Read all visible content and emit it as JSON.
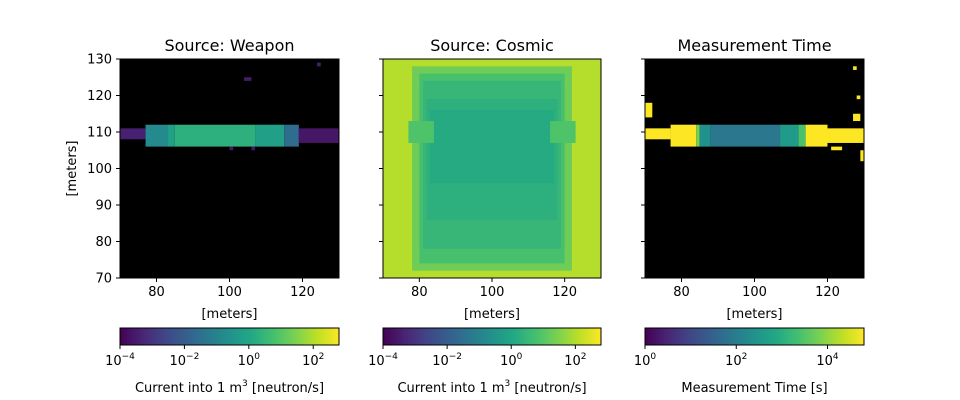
{
  "chart_data": [
    {
      "type": "heatmap",
      "title": "Source: Weapon",
      "xlabel": "[meters]",
      "ylabel": "[meters]",
      "xlim": [
        70,
        130
      ],
      "ylim": [
        70,
        130
      ],
      "xticks": [
        "80",
        "100",
        "120"
      ],
      "yticks": [
        "70",
        "80",
        "90",
        "100",
        "110",
        "120",
        "130"
      ],
      "background_color": "#000000",
      "colorbar": {
        "scale": "log",
        "ticks": [
          {
            "base": "10",
            "exp": "−4"
          },
          {
            "base": "10",
            "exp": "−2"
          },
          {
            "base": "10",
            "exp": "0"
          },
          {
            "base": "10",
            "exp": "2"
          }
        ],
        "label_main": "Current into 1 m",
        "label_sup": "3",
        "label_tail": " [neutron/s]",
        "range_exp": [
          -4,
          2.8
        ]
      },
      "regions": [
        {
          "x": [
            77,
            83
          ],
          "y": [
            106,
            112
          ],
          "log_value": -0.8
        },
        {
          "x": [
            83,
            85
          ],
          "y": [
            106,
            112
          ],
          "log_value": -0.2
        },
        {
          "x": [
            85,
            107
          ],
          "y": [
            106,
            112
          ],
          "log_value": 0.3
        },
        {
          "x": [
            107,
            115
          ],
          "y": [
            106,
            112
          ],
          "log_value": -0.2
        },
        {
          "x": [
            115,
            119
          ],
          "y": [
            106,
            112
          ],
          "log_value": -1.6
        },
        {
          "x": [
            70,
            77
          ],
          "y": [
            108,
            111
          ],
          "log_value": -3.4
        },
        {
          "x": [
            119,
            130
          ],
          "y": [
            107,
            111
          ],
          "log_value": -3.6
        },
        {
          "x": [
            100,
            101
          ],
          "y": [
            105,
            106
          ],
          "log_value": -3.6
        },
        {
          "x": [
            106,
            107
          ],
          "y": [
            105,
            106
          ],
          "log_value": -3.6
        },
        {
          "x": [
            104,
            106
          ],
          "y": [
            124,
            125
          ],
          "log_value": -3.5
        },
        {
          "x": [
            124,
            125
          ],
          "y": [
            128,
            129
          ],
          "log_value": -3.4
        }
      ]
    },
    {
      "type": "heatmap",
      "title": "Source: Cosmic",
      "xlabel": "[meters]",
      "xlim": [
        70,
        130
      ],
      "ylim": [
        70,
        130
      ],
      "xticks": [
        "80",
        "100",
        "120"
      ],
      "background_color": "#b5dd2b",
      "colorbar": {
        "scale": "log",
        "ticks": [
          {
            "base": "10",
            "exp": "−4"
          },
          {
            "base": "10",
            "exp": "−2"
          },
          {
            "base": "10",
            "exp": "0"
          },
          {
            "base": "10",
            "exp": "2"
          }
        ],
        "label_main": "Current into 1 m",
        "label_sup": "3",
        "label_tail": " [neutron/s]",
        "range_exp": [
          -4,
          2.8
        ]
      },
      "regions": [
        {
          "x": [
            78,
            122
          ],
          "y": [
            72,
            128
          ],
          "log_value": 1.3
        },
        {
          "x": [
            80,
            120
          ],
          "y": [
            74,
            126
          ],
          "log_value": 0.8
        },
        {
          "x": [
            81,
            119
          ],
          "y": [
            78,
            124
          ],
          "log_value": 0.5
        },
        {
          "x": [
            82,
            118
          ],
          "y": [
            86,
            119
          ],
          "log_value": 0.3
        },
        {
          "x": [
            83,
            117
          ],
          "y": [
            96,
            116
          ],
          "log_value": 0.15
        },
        {
          "x": [
            77,
            84
          ],
          "y": [
            107,
            113
          ],
          "log_value": 0.9
        },
        {
          "x": [
            116,
            123
          ],
          "y": [
            107,
            113
          ],
          "log_value": 0.9
        }
      ]
    },
    {
      "type": "heatmap",
      "title": "Measurement Time",
      "xlabel": "[meters]",
      "xlim": [
        70,
        130
      ],
      "ylim": [
        70,
        130
      ],
      "xticks": [
        "80",
        "100",
        "120"
      ],
      "background_color": "#000000",
      "colorbar": {
        "scale": "log",
        "ticks": [
          {
            "base": "10",
            "exp": "0"
          },
          {
            "base": "10",
            "exp": "2"
          },
          {
            "base": "10",
            "exp": "4"
          }
        ],
        "label_main": "Measurement Time [s]",
        "label_sup": "",
        "label_tail": "",
        "range_exp": [
          0,
          4.8
        ]
      },
      "regions": [
        {
          "x": [
            70,
            77
          ],
          "y": [
            108,
            111
          ],
          "log_value": 4.8
        },
        {
          "x": [
            77,
            84
          ],
          "y": [
            106,
            112
          ],
          "log_value": 4.8
        },
        {
          "x": [
            84,
            85
          ],
          "y": [
            106,
            112
          ],
          "log_value": 3.8
        },
        {
          "x": [
            85,
            88
          ],
          "y": [
            106,
            112
          ],
          "log_value": 2.4
        },
        {
          "x": [
            88,
            107
          ],
          "y": [
            106,
            112
          ],
          "log_value": 1.9
        },
        {
          "x": [
            107,
            112
          ],
          "y": [
            106,
            112
          ],
          "log_value": 2.6
        },
        {
          "x": [
            112,
            114
          ],
          "y": [
            106,
            112
          ],
          "log_value": 3.4
        },
        {
          "x": [
            114,
            120
          ],
          "y": [
            106,
            112
          ],
          "log_value": 4.8
        },
        {
          "x": [
            120,
            130
          ],
          "y": [
            107,
            111
          ],
          "log_value": 4.8
        },
        {
          "x": [
            70,
            72
          ],
          "y": [
            114,
            118
          ],
          "log_value": 4.8
        },
        {
          "x": [
            127,
            129
          ],
          "y": [
            113,
            115
          ],
          "log_value": 4.8
        },
        {
          "x": [
            129,
            130
          ],
          "y": [
            102,
            105
          ],
          "log_value": 4.8
        },
        {
          "x": [
            121,
            124
          ],
          "y": [
            105,
            106
          ],
          "log_value": 4.8
        },
        {
          "x": [
            127,
            128
          ],
          "y": [
            127,
            128
          ],
          "log_value": 4.8
        },
        {
          "x": [
            128,
            129
          ],
          "y": [
            119,
            120
          ],
          "log_value": 4.8
        }
      ]
    }
  ]
}
